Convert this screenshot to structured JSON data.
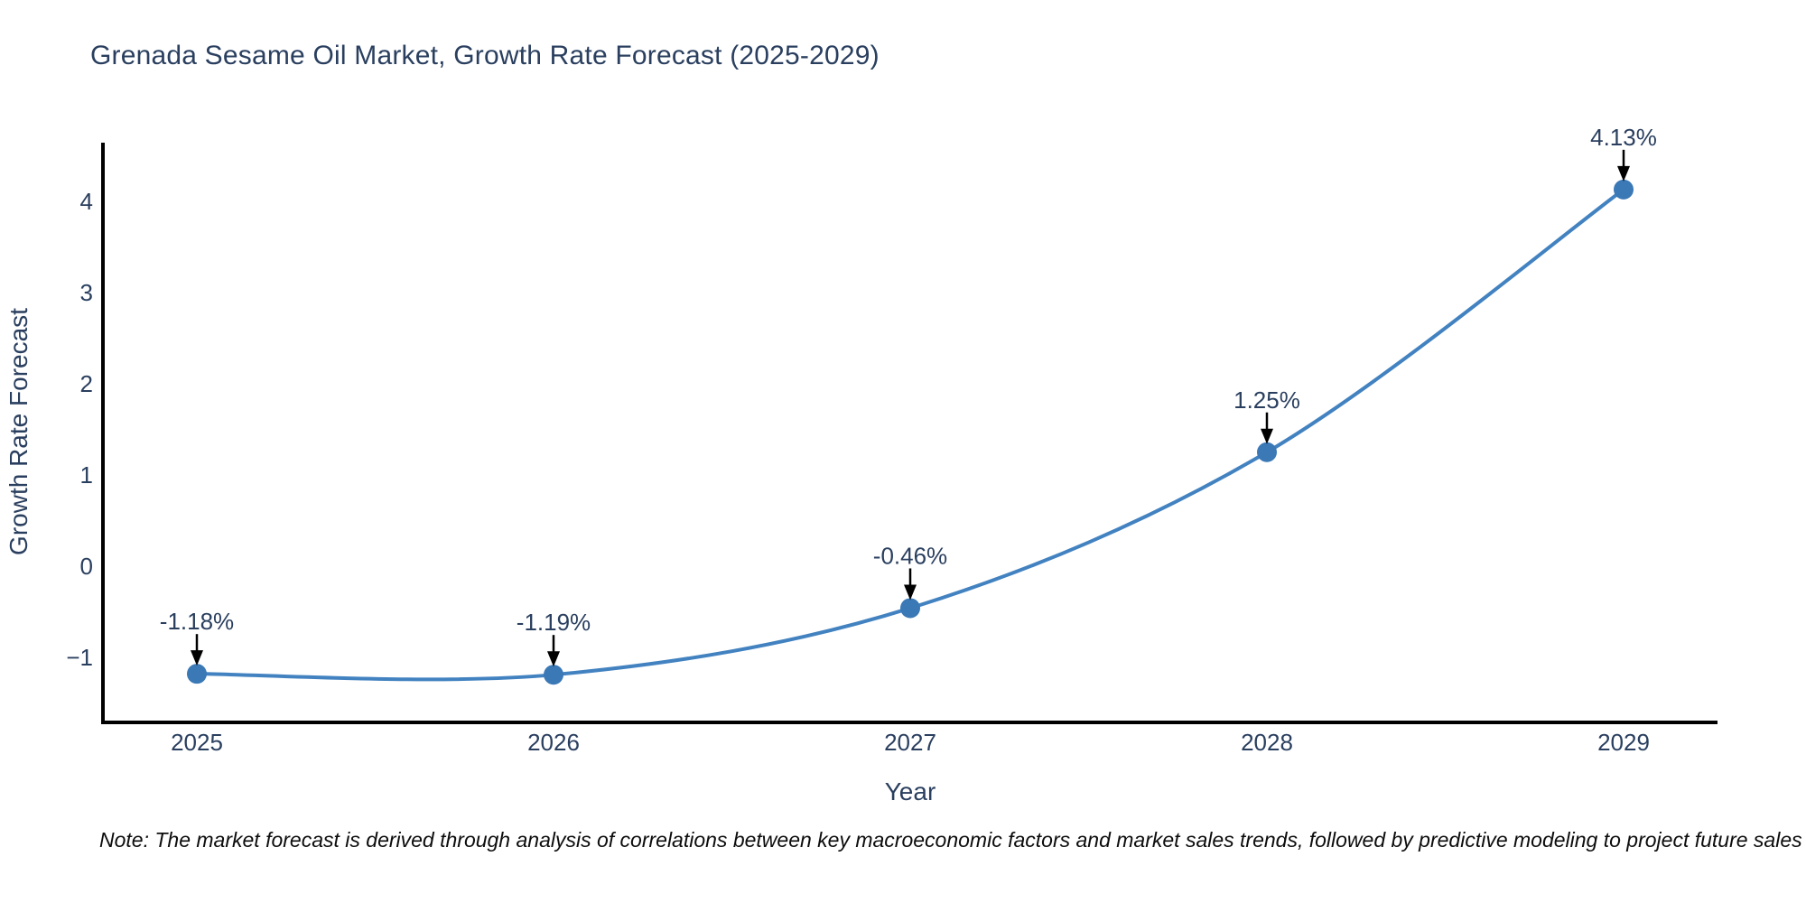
{
  "title": "Grenada Sesame Oil Market, Growth Rate Forecast (2025-2029)",
  "note": "Note: The market forecast is derived through analysis of correlations between key macroeconomic factors and market sales trends, followed by predictive modeling to project future sales",
  "chart_data": {
    "type": "line",
    "title": "Grenada Sesame Oil Market, Growth Rate Forecast (2025-2029)",
    "xlabel": "Year",
    "ylabel": "Growth Rate Forecast",
    "categories": [
      "2025",
      "2026",
      "2027",
      "2028",
      "2029"
    ],
    "values": [
      -1.18,
      -1.19,
      -0.46,
      1.25,
      4.13
    ],
    "point_labels": [
      "-1.18%",
      "-1.19%",
      "-0.46%",
      "1.25%",
      "4.13%"
    ],
    "yticks": [
      4,
      3,
      2,
      1,
      0,
      "−1"
    ],
    "ytick_values": [
      4,
      3,
      2,
      1,
      0,
      -1
    ],
    "ylim": [
      -1.7,
      4.65
    ],
    "line_shape": "spline",
    "grid": false,
    "legend_position": "none",
    "colors": {
      "line": "#4282c0",
      "marker": "#3a78b6",
      "axis": "#000000",
      "arrow": "#000000",
      "tick_text": "#2a3f5f",
      "annotation_text": "#2a3f5f",
      "title_text": "#2a3f5f"
    }
  }
}
